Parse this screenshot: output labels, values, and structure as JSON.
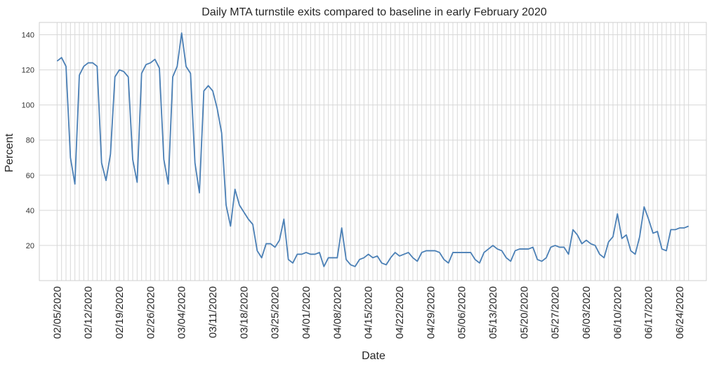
{
  "chart_data": {
    "type": "line",
    "title": "Daily MTA turnstile exits compared to baseline in early February 2020",
    "xlabel": "Date",
    "ylabel": "Percent",
    "ylim": [
      0,
      147
    ],
    "yticks": [
      20,
      40,
      60,
      80,
      100,
      120,
      140
    ],
    "xtick_labels": [
      "02/05/2020",
      "02/12/2020",
      "02/19/2020",
      "02/26/2020",
      "03/04/2020",
      "03/11/2020",
      "03/18/2020",
      "03/25/2020",
      "04/01/2020",
      "04/08/2020",
      "04/15/2020",
      "04/22/2020",
      "04/29/2020",
      "05/06/2020",
      "05/13/2020",
      "05/20/2020",
      "05/27/2020",
      "06/03/2020",
      "06/10/2020",
      "06/17/2020",
      "06/24/2020"
    ],
    "xrange": [
      "2020-02-01",
      "2020-06-30"
    ],
    "grid": true,
    "daily_vertical_grid": true,
    "series_color": "#4a7fb5",
    "series": [
      {
        "values": [
          [
            "2020-02-05",
            125
          ],
          [
            "2020-02-06",
            127
          ],
          [
            "2020-02-07",
            122
          ],
          [
            "2020-02-08",
            70
          ],
          [
            "2020-02-09",
            55
          ],
          [
            "2020-02-10",
            117
          ],
          [
            "2020-02-11",
            122
          ],
          [
            "2020-02-12",
            124
          ],
          [
            "2020-02-13",
            124
          ],
          [
            "2020-02-14",
            122
          ],
          [
            "2020-02-15",
            67
          ],
          [
            "2020-02-16",
            57
          ],
          [
            "2020-02-17",
            72
          ],
          [
            "2020-02-18",
            116
          ],
          [
            "2020-02-19",
            120
          ],
          [
            "2020-02-20",
            119
          ],
          [
            "2020-02-21",
            116
          ],
          [
            "2020-02-22",
            69
          ],
          [
            "2020-02-23",
            56
          ],
          [
            "2020-02-24",
            118
          ],
          [
            "2020-02-25",
            123
          ],
          [
            "2020-02-26",
            124
          ],
          [
            "2020-02-27",
            126
          ],
          [
            "2020-02-28",
            121
          ],
          [
            "2020-02-29",
            69
          ],
          [
            "2020-03-01",
            55
          ],
          [
            "2020-03-02",
            116
          ],
          [
            "2020-03-03",
            122
          ],
          [
            "2020-03-04",
            141
          ],
          [
            "2020-03-05",
            122
          ],
          [
            "2020-03-06",
            118
          ],
          [
            "2020-03-07",
            67
          ],
          [
            "2020-03-08",
            50
          ],
          [
            "2020-03-09",
            108
          ],
          [
            "2020-03-10",
            111
          ],
          [
            "2020-03-11",
            108
          ],
          [
            "2020-03-12",
            98
          ],
          [
            "2020-03-13",
            84
          ],
          [
            "2020-03-14",
            43
          ],
          [
            "2020-03-15",
            31
          ],
          [
            "2020-03-16",
            52
          ],
          [
            "2020-03-17",
            43
          ],
          [
            "2020-03-18",
            39
          ],
          [
            "2020-03-19",
            35
          ],
          [
            "2020-03-20",
            32
          ],
          [
            "2020-03-21",
            17
          ],
          [
            "2020-03-22",
            13
          ],
          [
            "2020-03-23",
            21
          ],
          [
            "2020-03-24",
            21
          ],
          [
            "2020-03-25",
            19
          ],
          [
            "2020-03-26",
            23
          ],
          [
            "2020-03-27",
            35
          ],
          [
            "2020-03-28",
            12
          ],
          [
            "2020-03-29",
            10
          ],
          [
            "2020-03-30",
            15
          ],
          [
            "2020-03-31",
            15
          ],
          [
            "2020-04-01",
            16
          ],
          [
            "2020-04-02",
            15
          ],
          [
            "2020-04-03",
            15
          ],
          [
            "2020-04-04",
            16
          ],
          [
            "2020-04-05",
            8
          ],
          [
            "2020-04-06",
            13
          ],
          [
            "2020-04-07",
            13
          ],
          [
            "2020-04-08",
            13
          ],
          [
            "2020-04-09",
            30
          ],
          [
            "2020-04-10",
            12
          ],
          [
            "2020-04-11",
            9
          ],
          [
            "2020-04-12",
            8
          ],
          [
            "2020-04-13",
            12
          ],
          [
            "2020-04-14",
            13
          ],
          [
            "2020-04-15",
            15
          ],
          [
            "2020-04-16",
            13
          ],
          [
            "2020-04-17",
            14
          ],
          [
            "2020-04-18",
            10
          ],
          [
            "2020-04-19",
            9
          ],
          [
            "2020-04-20",
            13
          ],
          [
            "2020-04-21",
            16
          ],
          [
            "2020-04-22",
            14
          ],
          [
            "2020-04-23",
            15
          ],
          [
            "2020-04-24",
            16
          ],
          [
            "2020-04-25",
            13
          ],
          [
            "2020-04-26",
            11
          ],
          [
            "2020-04-27",
            16
          ],
          [
            "2020-04-28",
            17
          ],
          [
            "2020-04-29",
            17
          ],
          [
            "2020-04-30",
            17
          ],
          [
            "2020-05-01",
            16
          ],
          [
            "2020-05-02",
            12
          ],
          [
            "2020-05-03",
            10
          ],
          [
            "2020-05-04",
            16
          ],
          [
            "2020-05-05",
            16
          ],
          [
            "2020-05-06",
            16
          ],
          [
            "2020-05-07",
            16
          ],
          [
            "2020-05-08",
            16
          ],
          [
            "2020-05-09",
            12
          ],
          [
            "2020-05-10",
            10
          ],
          [
            "2020-05-11",
            16
          ],
          [
            "2020-05-12",
            18
          ],
          [
            "2020-05-13",
            20
          ],
          [
            "2020-05-14",
            18
          ],
          [
            "2020-05-15",
            17
          ],
          [
            "2020-05-16",
            13
          ],
          [
            "2020-05-17",
            11
          ],
          [
            "2020-05-18",
            17
          ],
          [
            "2020-05-19",
            18
          ],
          [
            "2020-05-20",
            18
          ],
          [
            "2020-05-21",
            18
          ],
          [
            "2020-05-22",
            19
          ],
          [
            "2020-05-23",
            12
          ],
          [
            "2020-05-24",
            11
          ],
          [
            "2020-05-25",
            13
          ],
          [
            "2020-05-26",
            19
          ],
          [
            "2020-05-27",
            20
          ],
          [
            "2020-05-28",
            19
          ],
          [
            "2020-05-29",
            19
          ],
          [
            "2020-05-30",
            15
          ],
          [
            "2020-05-31",
            29
          ],
          [
            "2020-06-01",
            26
          ],
          [
            "2020-06-02",
            21
          ],
          [
            "2020-06-03",
            23
          ],
          [
            "2020-06-04",
            21
          ],
          [
            "2020-06-05",
            20
          ],
          [
            "2020-06-06",
            15
          ],
          [
            "2020-06-07",
            13
          ],
          [
            "2020-06-08",
            22
          ],
          [
            "2020-06-09",
            25
          ],
          [
            "2020-06-10",
            38
          ],
          [
            "2020-06-11",
            24
          ],
          [
            "2020-06-12",
            26
          ],
          [
            "2020-06-13",
            17
          ],
          [
            "2020-06-14",
            15
          ],
          [
            "2020-06-15",
            25
          ],
          [
            "2020-06-16",
            42
          ],
          [
            "2020-06-17",
            35
          ],
          [
            "2020-06-18",
            27
          ],
          [
            "2020-06-19",
            28
          ],
          [
            "2020-06-20",
            18
          ],
          [
            "2020-06-21",
            17
          ],
          [
            "2020-06-22",
            29
          ],
          [
            "2020-06-23",
            29
          ],
          [
            "2020-06-24",
            30
          ],
          [
            "2020-06-25",
            30
          ],
          [
            "2020-06-26",
            31
          ]
        ]
      }
    ]
  }
}
